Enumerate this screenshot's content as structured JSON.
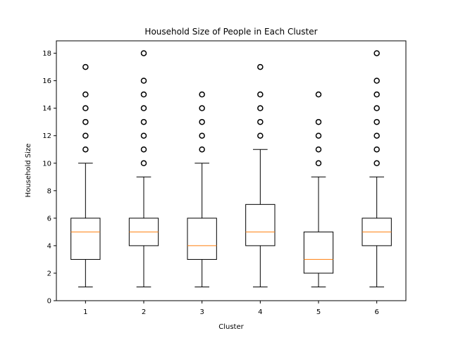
{
  "chart_data": {
    "type": "box",
    "title": "Household Size of People in Each Cluster",
    "xlabel": "Cluster",
    "ylabel": "Household Size",
    "categories": [
      "1",
      "2",
      "3",
      "4",
      "5",
      "6"
    ],
    "ylim": [
      0,
      18.9
    ],
    "yticks": [
      0,
      2,
      4,
      6,
      8,
      10,
      12,
      14,
      16,
      18
    ],
    "grid": false,
    "colors": {
      "median": "#ff7f0e",
      "box": "#000000",
      "background": "#ffffff"
    },
    "boxes": [
      {
        "category": "1",
        "whisker_low": 1,
        "q1": 3,
        "median": 5,
        "q3": 6,
        "whisker_high": 10,
        "outliers": [
          11,
          12,
          13,
          14,
          15,
          17
        ]
      },
      {
        "category": "2",
        "whisker_low": 1,
        "q1": 4,
        "median": 5,
        "q3": 6,
        "whisker_high": 9,
        "outliers": [
          10,
          11,
          12,
          13,
          14,
          15,
          16,
          18
        ]
      },
      {
        "category": "3",
        "whisker_low": 1,
        "q1": 3,
        "median": 4,
        "q3": 6,
        "whisker_high": 10,
        "outliers": [
          11,
          12,
          13,
          14,
          15
        ]
      },
      {
        "category": "4",
        "whisker_low": 1,
        "q1": 4,
        "median": 5,
        "q3": 7,
        "whisker_high": 11,
        "outliers": [
          12,
          13,
          14,
          15,
          17
        ]
      },
      {
        "category": "5",
        "whisker_low": 1,
        "q1": 2,
        "median": 3,
        "q3": 5,
        "whisker_high": 9,
        "outliers": [
          10,
          11,
          12,
          13,
          15
        ]
      },
      {
        "category": "6",
        "whisker_low": 1,
        "q1": 4,
        "median": 5,
        "q3": 6,
        "whisker_high": 9,
        "outliers": [
          10,
          11,
          12,
          13,
          14,
          15,
          16,
          18
        ]
      }
    ]
  }
}
